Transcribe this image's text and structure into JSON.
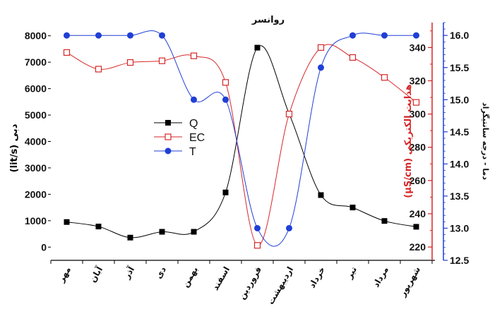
{
  "chart_data": {
    "type": "line",
    "title": "روانسر",
    "categories": [
      "مهر",
      "آبان",
      "آذر",
      "دی",
      "بهمن",
      "اسفند",
      "فروردین",
      "اردیبهشت",
      "خرداد",
      "تیر",
      "مرداد",
      "شهریور"
    ],
    "series": [
      {
        "name": "Q",
        "axis": "left",
        "color": "#000000",
        "marker": "square-filled",
        "values": [
          950,
          780,
          360,
          580,
          580,
          2070,
          7550,
          5050,
          1970,
          1500,
          990,
          770
        ]
      },
      {
        "name": "EC",
        "axis": "right1",
        "color": "#d62728",
        "marker": "square-open",
        "values": [
          337,
          327,
          331,
          332,
          335,
          319,
          221,
          300,
          340,
          334,
          322,
          307
        ]
      },
      {
        "name": "T",
        "axis": "right2",
        "color": "#1f3fd6",
        "marker": "circle-filled",
        "values": [
          16.0,
          16.0,
          16.0,
          16.0,
          15.0,
          15.0,
          13.0,
          13.0,
          15.5,
          16.0,
          16.0,
          16.0
        ]
      }
    ],
    "axes": {
      "left": {
        "label": "(lit/s) دبی",
        "ylim": [
          -500,
          8500
        ],
        "ticks": [
          0,
          1000,
          2000,
          3000,
          4000,
          5000,
          6000,
          7000,
          8000
        ],
        "color": "#000000"
      },
      "right1": {
        "label": "(µS/cm) هدایت الکتریکی",
        "ylim": [
          212,
          355
        ],
        "ticks": [
          220,
          240,
          260,
          280,
          300,
          320,
          340
        ],
        "color": "#d62728"
      },
      "right2": {
        "label": "دما - درجه سانتیگراد",
        "ylim": [
          12.5,
          16.2
        ],
        "ticks": [
          12.5,
          13.0,
          13.5,
          14.0,
          14.5,
          15.0,
          15.5,
          16.0
        ],
        "tick_labels": [
          "12.5",
          "13.0",
          "13.5",
          "14.0",
          "14.5",
          "15.0",
          "15.5",
          "16.0"
        ],
        "color": "#1f3fd6"
      }
    },
    "legend": "center-left",
    "grid": false
  }
}
